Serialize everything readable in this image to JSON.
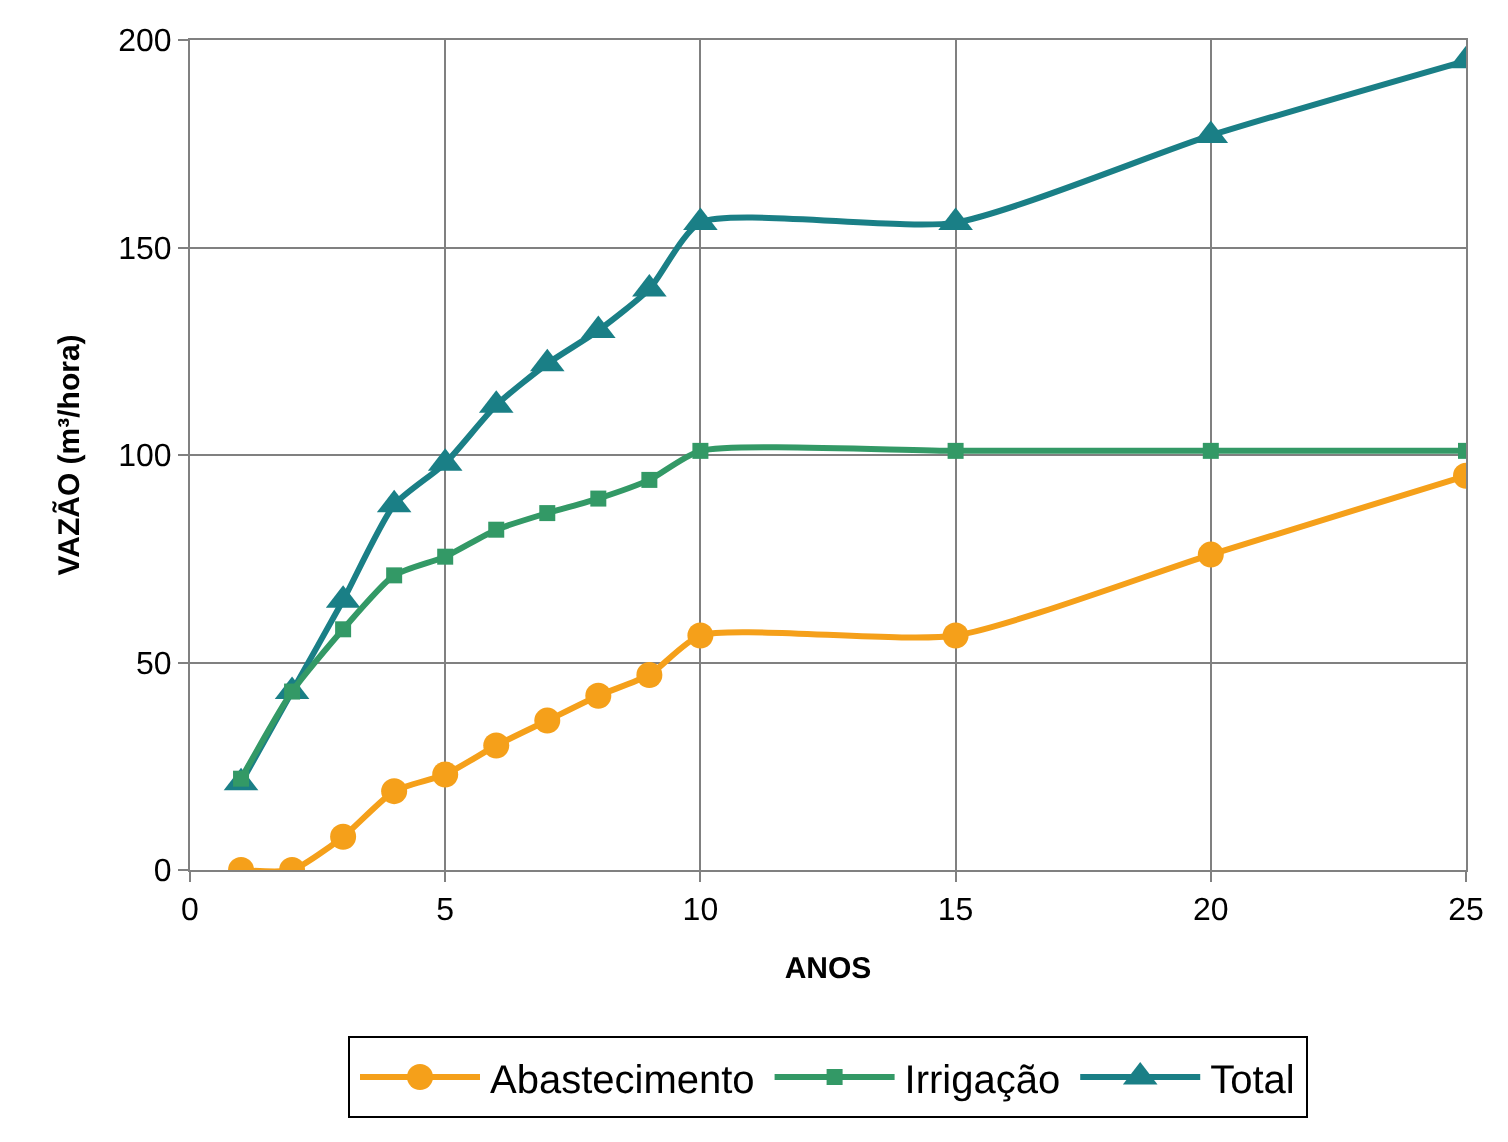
{
  "chart_data": {
    "type": "line",
    "xlabel": "ANOS",
    "ylabel": "VAZÃO (m³/hora)",
    "x": [
      1,
      2,
      3,
      4,
      5,
      6,
      7,
      8,
      9,
      10,
      15,
      20,
      25
    ],
    "series": [
      {
        "name": "Abastecimento",
        "color": "#f5a01a",
        "marker": "circle",
        "values": [
          0,
          0,
          8,
          19,
          23,
          30,
          36,
          42,
          47,
          56.5,
          56.5,
          76,
          95
        ]
      },
      {
        "name": "Irrigação",
        "color": "#339966",
        "marker": "square",
        "values": [
          22,
          43,
          58,
          71,
          75.5,
          82,
          86,
          89.5,
          94,
          101,
          101,
          101,
          101
        ]
      },
      {
        "name": "Total",
        "color": "#1a7f86",
        "marker": "triangle",
        "values": [
          21,
          43,
          65,
          88,
          98,
          112,
          122,
          130,
          140,
          156,
          156,
          177,
          195
        ]
      }
    ],
    "xlim": [
      0,
      25
    ],
    "xticks": [
      0,
      5,
      10,
      15,
      20,
      25
    ],
    "ylim": [
      0,
      200
    ],
    "yticks": [
      0,
      50,
      100,
      150,
      200
    ],
    "grid": true,
    "legend": "bottom",
    "line_style": "solid"
  }
}
